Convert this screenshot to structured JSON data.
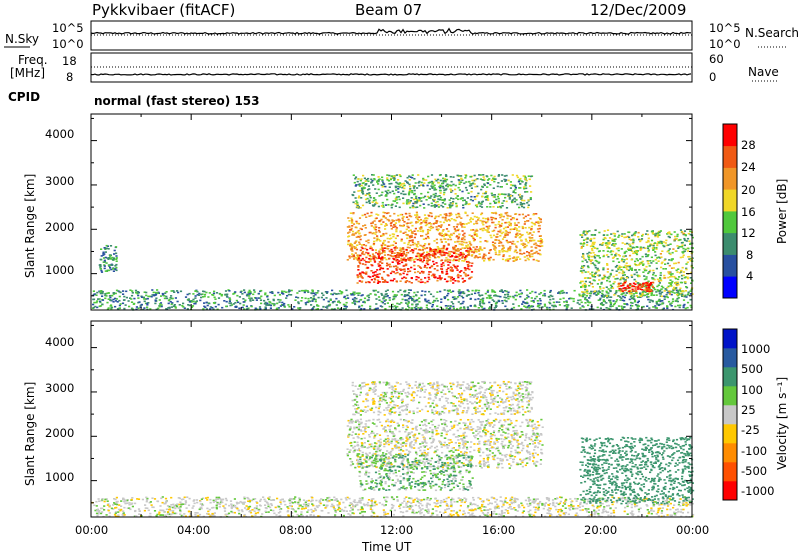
{
  "header": {
    "radar": "Pykkvibaer (fitACF)",
    "beam": "Beam 07",
    "date": "12/Dec/2009"
  },
  "strips": {
    "nsky_label": "N.Sky",
    "nsky_ticks": [
      "10^5",
      "10^0"
    ],
    "nsearch_label": "N.Search",
    "nsearch_ticks": [
      "10^5",
      "10^0"
    ],
    "freq_label_1": "Freq.",
    "freq_label_2": "[MHz]",
    "freq_ticks": [
      "18",
      "8"
    ],
    "nave_label": "Nave",
    "nave_ticks": [
      "60",
      "0"
    ],
    "cpid_label": "CPID",
    "cpid_value": "normal (fast stereo) 153"
  },
  "panels": {
    "ylabel": "Slant Range [km]",
    "yticks": [
      "4000",
      "3000",
      "2000",
      "1000"
    ],
    "xlabel": "Time UT",
    "xticks": [
      "00:00",
      "04:00",
      "08:00",
      "12:00",
      "16:00",
      "20:00",
      "00:00"
    ]
  },
  "chart_data": [
    {
      "type": "heatmap",
      "title": "",
      "xlabel": "Time UT",
      "ylabel": "Slant Range [km]",
      "xlim_hours": [
        0,
        24
      ],
      "ylim": [
        180,
        4600
      ],
      "colorbar_label": "Power [dB]",
      "colorbar_ticks": [
        "28",
        "24",
        "20",
        "16",
        "12",
        "8",
        "4"
      ],
      "colorbar_colors": [
        "#0000ff",
        "#2850a0",
        "#3c8c6e",
        "#50c83c",
        "#f0d728",
        "#f09628",
        "#f05a14",
        "#ff0000"
      ],
      "colorbar_range": [
        0,
        30
      ],
      "features": [
        {
          "region": "ground scatter band",
          "time_hours": [
            0,
            24
          ],
          "range_km": [
            200,
            650
          ],
          "power_db": 10
        },
        {
          "region": "early echoes",
          "time_hours": [
            0.3,
            1.0
          ],
          "range_km": [
            1050,
            1650
          ],
          "power_db": 10
        },
        {
          "region": "upper arc",
          "time_hours": [
            10.4,
            17.6
          ],
          "range_km": [
            2500,
            3250
          ],
          "power_db": 12
        },
        {
          "region": "middle arc",
          "time_hours": [
            10.2,
            18.0
          ],
          "range_km": [
            1300,
            2400
          ],
          "power_db": 20
        },
        {
          "region": "main echo region",
          "time_hours": [
            10.6,
            15.2
          ],
          "range_km": [
            800,
            1600
          ],
          "power_db": 26
        },
        {
          "region": "evening echoes",
          "time_hours": [
            19.5,
            24
          ],
          "range_km": [
            500,
            2000
          ],
          "power_db": 14
        },
        {
          "region": "evening core",
          "time_hours": [
            21.0,
            22.4
          ],
          "range_km": [
            620,
            820
          ],
          "power_db": 27
        }
      ]
    },
    {
      "type": "heatmap",
      "title": "",
      "xlabel": "Time UT",
      "ylabel": "Slant Range [km]",
      "xlim_hours": [
        0,
        24
      ],
      "ylim": [
        180,
        4600
      ],
      "colorbar_label": "Velocity [m s⁻¹]",
      "colorbar_ticks": [
        "1000",
        "500",
        "100",
        "25",
        "-25",
        "-100",
        "-500",
        "-1000"
      ],
      "colorbar_colors": [
        "#0014c8",
        "#285aa0",
        "#3c966e",
        "#64c83c",
        "#c8c8c8",
        "#ffc800",
        "#ff8c00",
        "#ff5000",
        "#ff0000"
      ],
      "features": [
        {
          "region": "ground scatter band",
          "time_hours": [
            0,
            24
          ],
          "range_km": [
            200,
            650
          ],
          "velocity": 0
        },
        {
          "region": "upper arc",
          "time_hours": [
            10.4,
            17.6
          ],
          "range_km": [
            2500,
            3250
          ],
          "velocity": 0
        },
        {
          "region": "middle arc",
          "time_hours": [
            10.2,
            18.0
          ],
          "range_km": [
            1300,
            2400
          ],
          "velocity": 0
        },
        {
          "region": "main echo region",
          "time_hours": [
            10.6,
            15.2
          ],
          "range_km": [
            800,
            1600
          ],
          "velocity": 50
        },
        {
          "region": "evening echoes",
          "time_hours": [
            19.5,
            24
          ],
          "range_km": [
            500,
            2000
          ],
          "velocity": 150
        }
      ]
    }
  ]
}
